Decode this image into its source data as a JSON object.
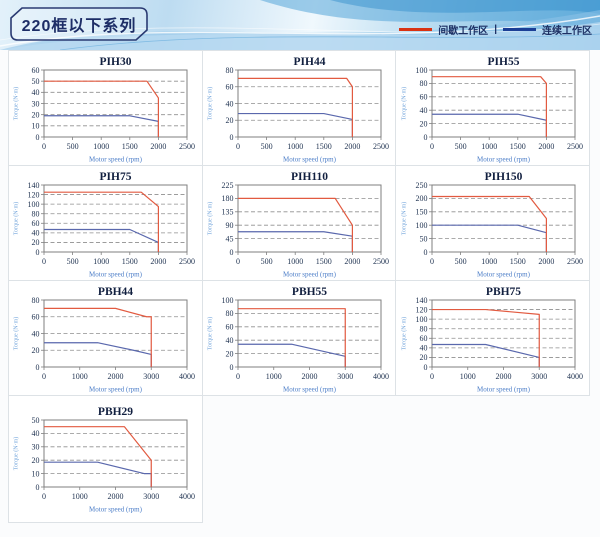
{
  "header": {
    "title": "220框以下系列",
    "legend": {
      "intermittent_label": "间歇工作区",
      "separator": "|",
      "continuous_label": "连续工作区"
    }
  },
  "colors": {
    "legend_intermittent": "#d93212",
    "legend_continuous": "#1b3f96",
    "line_intermittent": "#e25a40",
    "line_continuous": "#5a68ad",
    "grid_dash": "#8f8f8f",
    "plot_border": "#7f7f7f",
    "tick_text": "#1f3250",
    "chart_title": "#111f3f",
    "xlabel_text": "#4a7cc7",
    "ylabel_text": "#79a9dd"
  },
  "chart_data": [
    {
      "type": "line",
      "title": "PIH30",
      "xlabel": "Motor speed (rpm)",
      "ylabel": "Torque (N·m)",
      "xlim": [
        0,
        2500
      ],
      "ylim": [
        0,
        60
      ],
      "xticks": [
        0,
        500,
        1000,
        1500,
        2000,
        2500
      ],
      "yticks": [
        0,
        10,
        20,
        30,
        40,
        50,
        60
      ],
      "series": [
        {
          "name": "间歇工作区",
          "role": "intermittent",
          "points": [
            [
              0,
              50
            ],
            [
              1800,
              50
            ],
            [
              2000,
              35
            ],
            [
              2000,
              0
            ]
          ]
        },
        {
          "name": "连续工作区",
          "role": "continuous",
          "points": [
            [
              0,
              19
            ],
            [
              1500,
              19
            ],
            [
              2000,
              14
            ],
            [
              2000,
              0
            ]
          ]
        }
      ]
    },
    {
      "type": "line",
      "title": "PIH44",
      "xlabel": "Motor speed (rpm)",
      "ylabel": "Torque (N·m)",
      "xlim": [
        0,
        2500
      ],
      "ylim": [
        0,
        80
      ],
      "xticks": [
        0,
        500,
        1000,
        1500,
        2000,
        2500
      ],
      "yticks": [
        0,
        20,
        40,
        60,
        80
      ],
      "series": [
        {
          "name": "间歇工作区",
          "role": "intermittent",
          "points": [
            [
              0,
              70
            ],
            [
              1900,
              70
            ],
            [
              2000,
              60
            ],
            [
              2000,
              0
            ]
          ]
        },
        {
          "name": "连续工作区",
          "role": "continuous",
          "points": [
            [
              0,
              28
            ],
            [
              1500,
              28
            ],
            [
              2000,
              21
            ],
            [
              2000,
              0
            ]
          ]
        }
      ]
    },
    {
      "type": "line",
      "title": "PIH55",
      "xlabel": "Motor speed (rpm)",
      "ylabel": "Torque (N·m)",
      "xlim": [
        0,
        2500
      ],
      "ylim": [
        0,
        100
      ],
      "xticks": [
        0,
        500,
        1000,
        1500,
        2000,
        2500
      ],
      "yticks": [
        0,
        20,
        40,
        60,
        80,
        100
      ],
      "series": [
        {
          "name": "间歇工作区",
          "role": "intermittent",
          "points": [
            [
              0,
              90
            ],
            [
              1900,
              90
            ],
            [
              2000,
              80
            ],
            [
              2000,
              0
            ]
          ]
        },
        {
          "name": "连续工作区",
          "role": "continuous",
          "points": [
            [
              0,
              34
            ],
            [
              1500,
              34
            ],
            [
              2000,
              25
            ],
            [
              2000,
              0
            ]
          ]
        }
      ]
    },
    {
      "type": "line",
      "title": "PIH75",
      "xlabel": "Motor speed (rpm)",
      "ylabel": "Torque (N·m)",
      "xlim": [
        0,
        2500
      ],
      "ylim": [
        0,
        140
      ],
      "xticks": [
        0,
        500,
        1000,
        1500,
        2000,
        2500
      ],
      "yticks": [
        0,
        20,
        40,
        60,
        80,
        100,
        120,
        140
      ],
      "series": [
        {
          "name": "间歇工作区",
          "role": "intermittent",
          "points": [
            [
              0,
              125
            ],
            [
              1700,
              125
            ],
            [
              2000,
              95
            ],
            [
              2000,
              0
            ]
          ]
        },
        {
          "name": "连续工作区",
          "role": "continuous",
          "points": [
            [
              0,
              47
            ],
            [
              1500,
              47
            ],
            [
              2000,
              20
            ],
            [
              2000,
              0
            ]
          ]
        }
      ]
    },
    {
      "type": "line",
      "title": "PIH110",
      "xlabel": "Motor speed (rpm)",
      "ylabel": "Torque (N·m)",
      "xlim": [
        0,
        2500
      ],
      "ylim": [
        0,
        225
      ],
      "xticks": [
        0,
        500,
        1000,
        1500,
        2000,
        2500
      ],
      "yticks": [
        0,
        45,
        90,
        135,
        180,
        225
      ],
      "series": [
        {
          "name": "间歇工作区",
          "role": "intermittent",
          "points": [
            [
              0,
              180
            ],
            [
              1700,
              180
            ],
            [
              2000,
              90
            ],
            [
              2000,
              0
            ]
          ]
        },
        {
          "name": "连续工作区",
          "role": "continuous",
          "points": [
            [
              0,
              68
            ],
            [
              1500,
              68
            ],
            [
              2000,
              53
            ],
            [
              2000,
              0
            ]
          ]
        }
      ]
    },
    {
      "type": "line",
      "title": "PIH150",
      "xlabel": "Motor speed (rpm)",
      "ylabel": "Torque (N·m)",
      "xlim": [
        0,
        2500
      ],
      "ylim": [
        0,
        250
      ],
      "xticks": [
        0,
        500,
        1000,
        1500,
        2000,
        2500
      ],
      "yticks": [
        0,
        50,
        100,
        150,
        200,
        250
      ],
      "series": [
        {
          "name": "间歇工作区",
          "role": "intermittent",
          "points": [
            [
              0,
              207
            ],
            [
              1700,
              207
            ],
            [
              2000,
              125
            ],
            [
              2000,
              0
            ]
          ]
        },
        {
          "name": "连续工作区",
          "role": "continuous",
          "points": [
            [
              0,
              100
            ],
            [
              1500,
              100
            ],
            [
              2000,
              72
            ],
            [
              2000,
              0
            ]
          ]
        }
      ]
    },
    {
      "type": "line",
      "title": "PBH44",
      "xlabel": "Motor speed (rpm)",
      "ylabel": "Torque (N·m)",
      "xlim": [
        0,
        4000
      ],
      "ylim": [
        0,
        80
      ],
      "xticks": [
        0,
        1000,
        2000,
        3000,
        4000
      ],
      "yticks": [
        0,
        20,
        40,
        60,
        80
      ],
      "series": [
        {
          "name": "间歇工作区",
          "role": "intermittent",
          "points": [
            [
              0,
              70
            ],
            [
              2000,
              70
            ],
            [
              2870,
              60
            ],
            [
              3000,
              60
            ],
            [
              3000,
              0
            ]
          ]
        },
        {
          "name": "连续工作区",
          "role": "continuous",
          "points": [
            [
              0,
              29
            ],
            [
              1500,
              29
            ],
            [
              2500,
              20
            ],
            [
              3000,
              15
            ],
            [
              3000,
              0
            ]
          ]
        }
      ]
    },
    {
      "type": "line",
      "title": "PBH55",
      "xlabel": "Motor speed (rpm)",
      "ylabel": "Torque (N·m)",
      "xlim": [
        0,
        4000
      ],
      "ylim": [
        0,
        100
      ],
      "xticks": [
        0,
        1000,
        2000,
        3000,
        4000
      ],
      "yticks": [
        0,
        20,
        40,
        60,
        80,
        100
      ],
      "series": [
        {
          "name": "间歇工作区",
          "role": "intermittent",
          "points": [
            [
              0,
              87
            ],
            [
              3000,
              87
            ],
            [
              3000,
              0
            ]
          ]
        },
        {
          "name": "连续工作区",
          "role": "continuous",
          "points": [
            [
              0,
              34
            ],
            [
              1500,
              34
            ],
            [
              3000,
              16
            ],
            [
              3000,
              0
            ]
          ]
        }
      ]
    },
    {
      "type": "line",
      "title": "PBH75",
      "xlabel": "Motor speed (rpm)",
      "ylabel": "Torque (N·m)",
      "xlim": [
        0,
        4000
      ],
      "ylim": [
        0,
        140
      ],
      "xticks": [
        0,
        1000,
        2000,
        3000,
        4000
      ],
      "yticks": [
        0,
        20,
        40,
        60,
        80,
        100,
        120,
        140
      ],
      "series": [
        {
          "name": "间歇工作区",
          "role": "intermittent",
          "points": [
            [
              0,
              120
            ],
            [
              1500,
              120
            ],
            [
              3000,
              110
            ],
            [
              3000,
              0
            ]
          ]
        },
        {
          "name": "连续工作区",
          "role": "continuous",
          "points": [
            [
              0,
              47
            ],
            [
              1500,
              47
            ],
            [
              3000,
              20
            ],
            [
              3000,
              0
            ]
          ]
        }
      ]
    },
    {
      "type": "line",
      "title": "PBH29",
      "xlabel": "Motor speed (rpm)",
      "ylabel": "Torque (N·m)",
      "xlim": [
        0,
        4000
      ],
      "ylim": [
        0,
        50
      ],
      "xticks": [
        0,
        1000,
        2000,
        3000,
        4000
      ],
      "yticks": [
        0,
        10,
        20,
        30,
        40,
        50
      ],
      "series": [
        {
          "name": "间歇工作区",
          "role": "intermittent",
          "points": [
            [
              0,
              45
            ],
            [
              2250,
              45
            ],
            [
              3000,
              20
            ],
            [
              3000,
              0
            ]
          ]
        },
        {
          "name": "连续工作区",
          "role": "continuous",
          "points": [
            [
              0,
              18.5
            ],
            [
              1500,
              18.5
            ],
            [
              2800,
              10
            ],
            [
              3000,
              10
            ],
            [
              3000,
              0
            ]
          ]
        }
      ]
    }
  ]
}
